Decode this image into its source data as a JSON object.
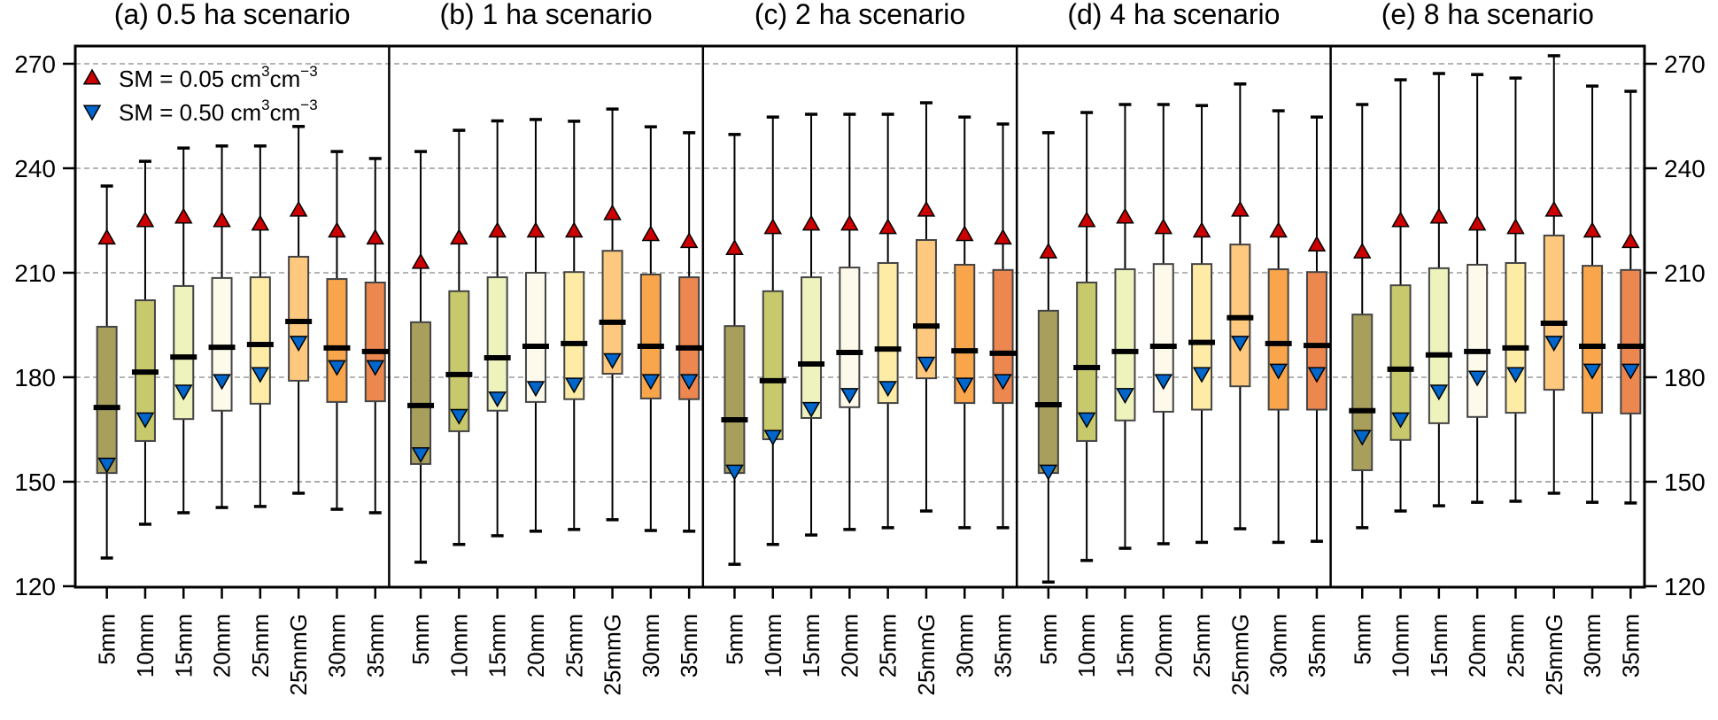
{
  "chart_data": {
    "type": "box",
    "ylim": [
      120,
      275
    ],
    "yticks": [
      120,
      150,
      180,
      210,
      240,
      270
    ],
    "grid": "y-dashed",
    "categories": [
      "5mm",
      "10mm",
      "15mm",
      "20mm",
      "25mm",
      "25mmG",
      "30mm",
      "35mm"
    ],
    "category_colors": [
      "#a89f5c",
      "#c8c96c",
      "#eef2bc",
      "#fefaeb",
      "#feeca6",
      "#fec97e",
      "#f8a54c",
      "#ec874f"
    ],
    "legend": {
      "placement": "top-left",
      "entries": [
        {
          "marker": "triangle-up",
          "color": "#cc0000",
          "label": "SM = 0.05 cm",
          "sup1": "3",
          "mid": "cm",
          "sup2": "−3"
        },
        {
          "marker": "triangle-down",
          "color": "#0066cc",
          "label": "SM = 0.50 cm",
          "sup1": "3",
          "mid": "cm",
          "sup2": "−3"
        }
      ]
    },
    "panels": [
      {
        "title": "(a) 0.5 ha scenario",
        "boxes": [
          {
            "whisker_low": 128.1,
            "q1": 152.5,
            "median": 171.3,
            "q3": 194.5,
            "whisker_high": 234.9,
            "sm005": 220,
            "sm050": 155
          },
          {
            "whisker_low": 137.8,
            "q1": 161.7,
            "median": 181.5,
            "q3": 202.1,
            "whisker_high": 242.0,
            "sm005": 225,
            "sm050": 168
          },
          {
            "whisker_low": 141.1,
            "q1": 168.0,
            "median": 185.8,
            "q3": 206.2,
            "whisker_high": 245.8,
            "sm005": 226,
            "sm050": 176
          },
          {
            "whisker_low": 142.6,
            "q1": 170.4,
            "median": 188.6,
            "q3": 208.5,
            "whisker_high": 246.4,
            "sm005": 225,
            "sm050": 179
          },
          {
            "whisker_low": 142.9,
            "q1": 172.4,
            "median": 189.4,
            "q3": 208.7,
            "whisker_high": 246.4,
            "sm005": 224,
            "sm050": 181
          },
          {
            "whisker_low": 146.7,
            "q1": 179.0,
            "median": 196.0,
            "q3": 214.6,
            "whisker_high": 252.0,
            "sm005": 228,
            "sm050": 190
          },
          {
            "whisker_low": 142.1,
            "q1": 172.9,
            "median": 188.4,
            "q3": 208.2,
            "whisker_high": 244.8,
            "sm005": 222,
            "sm050": 183
          },
          {
            "whisker_low": 141.1,
            "q1": 173.1,
            "median": 187.4,
            "q3": 207.2,
            "whisker_high": 242.8,
            "sm005": 220,
            "sm050": 183
          }
        ]
      },
      {
        "title": "(b) 1 ha scenario",
        "boxes": [
          {
            "whisker_low": 126.9,
            "q1": 155.1,
            "median": 171.9,
            "q3": 195.8,
            "whisker_high": 244.8,
            "sm005": 213,
            "sm050": 158
          },
          {
            "whisker_low": 132.0,
            "q1": 164.5,
            "median": 180.8,
            "q3": 204.7,
            "whisker_high": 250.9,
            "sm005": 220,
            "sm050": 169
          },
          {
            "whisker_low": 134.5,
            "q1": 170.4,
            "median": 185.6,
            "q3": 208.7,
            "whisker_high": 253.6,
            "sm005": 222,
            "sm050": 174
          },
          {
            "whisker_low": 135.8,
            "q1": 172.9,
            "median": 188.9,
            "q3": 210.0,
            "whisker_high": 254.0,
            "sm005": 222,
            "sm050": 177
          },
          {
            "whisker_low": 136.3,
            "q1": 173.7,
            "median": 189.7,
            "q3": 210.2,
            "whisker_high": 253.5,
            "sm005": 222,
            "sm050": 178
          },
          {
            "whisker_low": 139.1,
            "q1": 181.0,
            "median": 195.8,
            "q3": 216.3,
            "whisker_high": 257.0,
            "sm005": 227,
            "sm050": 185
          },
          {
            "whisker_low": 136.0,
            "q1": 173.9,
            "median": 188.9,
            "q3": 209.5,
            "whisker_high": 251.9,
            "sm005": 221,
            "sm050": 179
          },
          {
            "whisker_low": 135.8,
            "q1": 173.7,
            "median": 188.4,
            "q3": 208.7,
            "whisker_high": 250.2,
            "sm005": 219,
            "sm050": 179
          }
        ]
      },
      {
        "title": "(c) 2 ha scenario",
        "boxes": [
          {
            "whisker_low": 126.3,
            "q1": 152.5,
            "median": 167.8,
            "q3": 194.7,
            "whisker_high": 249.7,
            "sm005": 217,
            "sm050": 153
          },
          {
            "whisker_low": 132.0,
            "q1": 162.2,
            "median": 179.0,
            "q3": 204.7,
            "whisker_high": 254.7,
            "sm005": 223,
            "sm050": 163
          },
          {
            "whisker_low": 134.7,
            "q1": 168.3,
            "median": 183.8,
            "q3": 208.7,
            "whisker_high": 255.5,
            "sm005": 224,
            "sm050": 171
          },
          {
            "whisker_low": 136.3,
            "q1": 171.4,
            "median": 187.1,
            "q3": 211.5,
            "whisker_high": 255.5,
            "sm005": 224,
            "sm050": 175
          },
          {
            "whisker_low": 136.8,
            "q1": 172.6,
            "median": 188.1,
            "q3": 212.8,
            "whisker_high": 255.5,
            "sm005": 223,
            "sm050": 177
          },
          {
            "whisker_low": 141.6,
            "q1": 179.7,
            "median": 194.7,
            "q3": 219.4,
            "whisker_high": 258.8,
            "sm005": 228,
            "sm050": 184
          },
          {
            "whisker_low": 136.8,
            "q1": 172.6,
            "median": 187.6,
            "q3": 212.3,
            "whisker_high": 254.7,
            "sm005": 221,
            "sm050": 178
          },
          {
            "whisker_low": 136.8,
            "q1": 172.6,
            "median": 186.9,
            "q3": 210.8,
            "whisker_high": 252.7,
            "sm005": 220,
            "sm050": 179
          }
        ]
      },
      {
        "title": "(d) 4 ha scenario",
        "boxes": [
          {
            "whisker_low": 121.2,
            "q1": 152.5,
            "median": 172.1,
            "q3": 199.1,
            "whisker_high": 250.2,
            "sm005": 216,
            "sm050": 153
          },
          {
            "whisker_low": 127.4,
            "q1": 161.7,
            "median": 182.8,
            "q3": 207.2,
            "whisker_high": 256.0,
            "sm005": 225,
            "sm050": 168
          },
          {
            "whisker_low": 130.9,
            "q1": 167.6,
            "median": 187.4,
            "q3": 211.0,
            "whisker_high": 258.3,
            "sm005": 226,
            "sm050": 175
          },
          {
            "whisker_low": 132.2,
            "q1": 170.1,
            "median": 188.9,
            "q3": 212.5,
            "whisker_high": 258.3,
            "sm005": 223,
            "sm050": 179
          },
          {
            "whisker_low": 132.6,
            "q1": 170.7,
            "median": 190.0,
            "q3": 212.5,
            "whisker_high": 258.0,
            "sm005": 222,
            "sm050": 181
          },
          {
            "whisker_low": 136.5,
            "q1": 177.4,
            "median": 197.1,
            "q3": 218.1,
            "whisker_high": 264.2,
            "sm005": 228,
            "sm050": 190
          },
          {
            "whisker_low": 132.6,
            "q1": 170.7,
            "median": 189.7,
            "q3": 211.0,
            "whisker_high": 256.5,
            "sm005": 222,
            "sm050": 182
          },
          {
            "whisker_low": 132.9,
            "q1": 170.7,
            "median": 189.1,
            "q3": 210.2,
            "whisker_high": 254.7,
            "sm005": 218,
            "sm050": 181
          }
        ]
      },
      {
        "title": "(e) 8 ha scenario",
        "boxes": [
          {
            "whisker_low": 136.8,
            "q1": 153.3,
            "median": 170.4,
            "q3": 198.0,
            "whisker_high": 258.3,
            "sm005": 216,
            "sm050": 163
          },
          {
            "whisker_low": 141.6,
            "q1": 162.0,
            "median": 182.3,
            "q3": 206.4,
            "whisker_high": 265.4,
            "sm005": 225,
            "sm050": 168
          },
          {
            "whisker_low": 143.1,
            "q1": 166.8,
            "median": 186.4,
            "q3": 211.3,
            "whisker_high": 267.2,
            "sm005": 226,
            "sm050": 176
          },
          {
            "whisker_low": 144.1,
            "q1": 168.6,
            "median": 187.4,
            "q3": 212.3,
            "whisker_high": 266.9,
            "sm005": 224,
            "sm050": 180
          },
          {
            "whisker_low": 144.4,
            "q1": 169.8,
            "median": 188.4,
            "q3": 212.8,
            "whisker_high": 265.9,
            "sm005": 223,
            "sm050": 181
          },
          {
            "whisker_low": 146.7,
            "q1": 176.4,
            "median": 195.5,
            "q3": 220.7,
            "whisker_high": 272.3,
            "sm005": 228,
            "sm050": 190
          },
          {
            "whisker_low": 144.1,
            "q1": 169.8,
            "median": 188.9,
            "q3": 212.0,
            "whisker_high": 263.6,
            "sm005": 222,
            "sm050": 182
          },
          {
            "whisker_low": 143.9,
            "q1": 169.6,
            "median": 188.9,
            "q3": 210.8,
            "whisker_high": 262.1,
            "sm005": 219,
            "sm050": 182
          }
        ]
      }
    ]
  }
}
